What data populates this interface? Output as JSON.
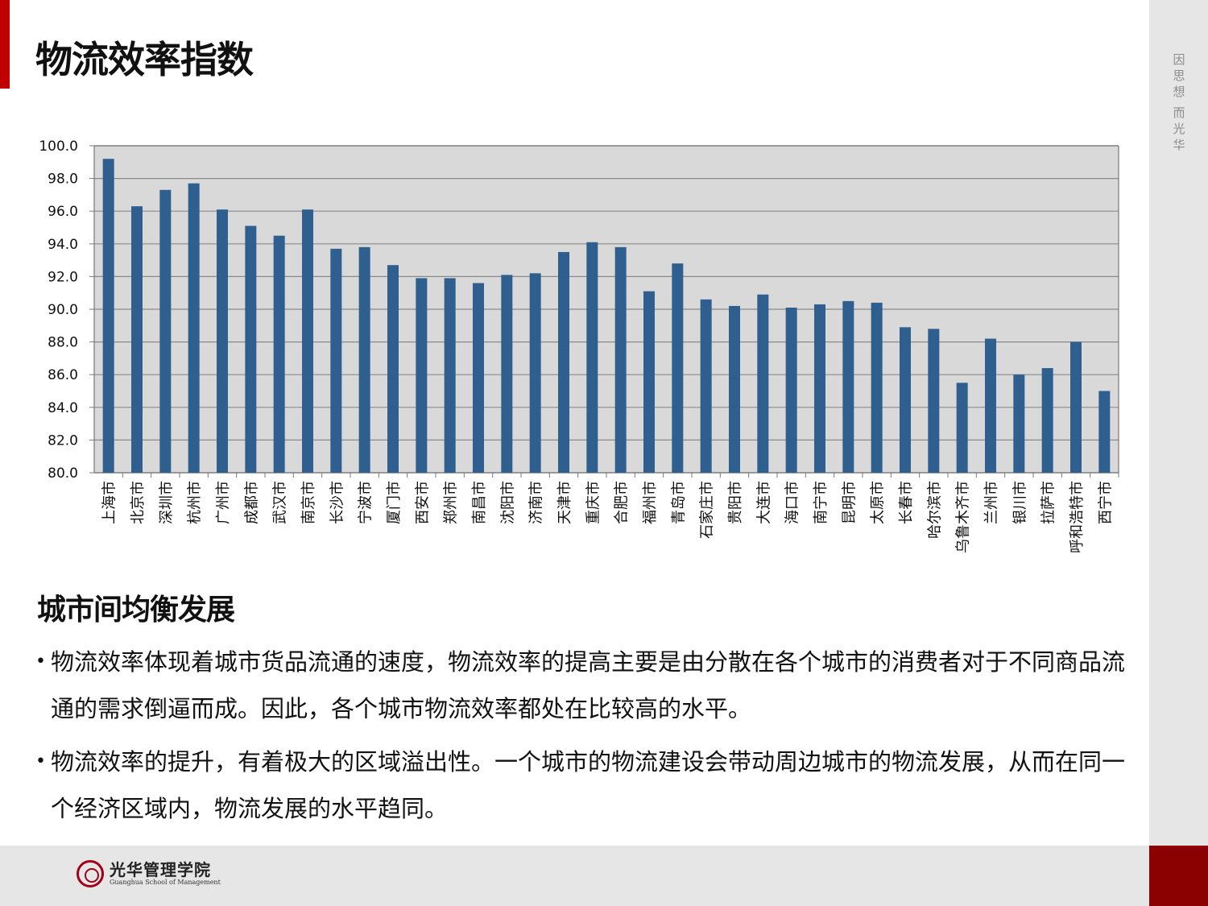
{
  "slide": {
    "title": "物流效率指数",
    "side_slogan": [
      "因",
      "思",
      "想",
      "而",
      "光",
      "华"
    ],
    "section_heading": "城市间均衡发展",
    "bullets": [
      "物流效率体现着城市货品流通的速度，物流效率的提高主要是由分散在各个城市的消费者对于不同商品流通的需求倒逼而成。因此，各个城市物流效率都处在比较高的水平。",
      "物流效率的提升，有着极大的区域溢出性。一个城市的物流建设会带动周边城市的物流发展，从而在同一个经济区域内，物流发展的水平趋同。"
    ],
    "logo": {
      "cn": "光华管理学院",
      "en": "Guanghua School of Management"
    }
  },
  "colors": {
    "bar": "#2e5f8e",
    "plot_bg": "#d9d9d9",
    "accent": "#c00000",
    "footer_red": "#8b0000",
    "panel_gray": "#e6e6e6"
  },
  "chart_data": {
    "type": "bar",
    "categories": [
      "上海市",
      "北京市",
      "深圳市",
      "杭州市",
      "广州市",
      "成都市",
      "武汉市",
      "南京市",
      "长沙市",
      "宁波市",
      "厦门市",
      "西安市",
      "郑州市",
      "南昌市",
      "沈阳市",
      "济南市",
      "天津市",
      "重庆市",
      "合肥市",
      "福州市",
      "青岛市",
      "石家庄市",
      "贵阳市",
      "大连市",
      "海口市",
      "南宁市",
      "昆明市",
      "太原市",
      "长春市",
      "哈尔滨市",
      "乌鲁木齐市",
      "兰州市",
      "银川市",
      "拉萨市",
      "呼和浩特市",
      "西宁市"
    ],
    "values": [
      99.2,
      96.3,
      97.3,
      97.7,
      96.1,
      95.1,
      94.5,
      96.1,
      93.7,
      93.8,
      92.7,
      91.9,
      91.9,
      91.6,
      92.1,
      92.2,
      93.5,
      94.1,
      93.8,
      91.1,
      92.8,
      90.6,
      90.2,
      90.9,
      90.1,
      90.3,
      90.5,
      90.4,
      88.9,
      88.8,
      85.5,
      88.2,
      86.0,
      86.4,
      88.0,
      85.0
    ],
    "ylim": [
      80,
      100
    ],
    "yticks": [
      "80.0",
      "82.0",
      "84.0",
      "86.0",
      "88.0",
      "90.0",
      "92.0",
      "94.0",
      "96.0",
      "98.0",
      "100.0"
    ],
    "grid": true,
    "legend": "none"
  }
}
